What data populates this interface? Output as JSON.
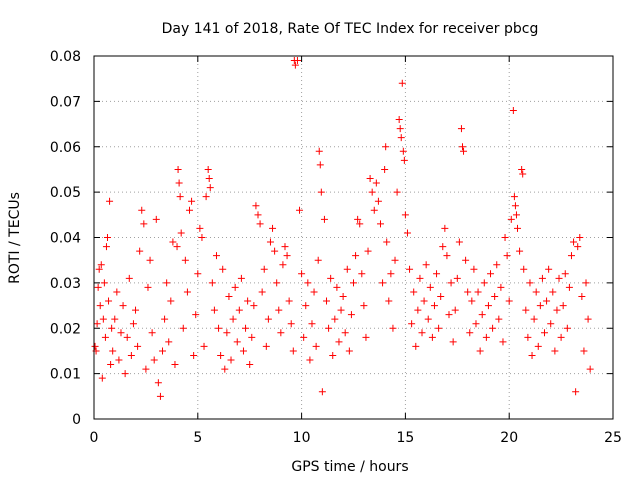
{
  "chart_data": {
    "type": "scatter",
    "title": "Day 141 of 2018, Rate Of TEC Index for receiver pbcg",
    "xlabel": "GPS time / hours",
    "ylabel": "ROTI / TECUs",
    "xlim": [
      0,
      25
    ],
    "ylim": [
      0,
      0.08
    ],
    "x_ticks": [
      0,
      5,
      10,
      15,
      20,
      25
    ],
    "x_tick_labels": [
      "0",
      "5",
      "10",
      "15",
      "20",
      "25"
    ],
    "y_ticks": [
      0,
      0.01,
      0.02,
      0.03,
      0.04,
      0.05,
      0.06,
      0.07,
      0.08
    ],
    "y_tick_labels": [
      "0",
      "0.01",
      "0.02",
      "0.03",
      "0.04",
      "0.05",
      "0.06",
      "0.07",
      "0.08"
    ],
    "grid": true,
    "marker": "+",
    "marker_color": "#ff0000",
    "series": [
      {
        "name": "ROTI",
        "points": [
          [
            0.05,
            0.016
          ],
          [
            0.1,
            0.015
          ],
          [
            0.15,
            0.021
          ],
          [
            0.2,
            0.029
          ],
          [
            0.25,
            0.033
          ],
          [
            0.3,
            0.025
          ],
          [
            0.35,
            0.034
          ],
          [
            0.4,
            0.009
          ],
          [
            0.45,
            0.022
          ],
          [
            0.5,
            0.03
          ],
          [
            0.55,
            0.018
          ],
          [
            0.6,
            0.038
          ],
          [
            0.65,
            0.04
          ],
          [
            0.7,
            0.026
          ],
          [
            0.75,
            0.048
          ],
          [
            0.8,
            0.012
          ],
          [
            0.85,
            0.02
          ],
          [
            0.9,
            0.015
          ],
          [
            1.0,
            0.022
          ],
          [
            1.1,
            0.028
          ],
          [
            1.2,
            0.013
          ],
          [
            1.3,
            0.019
          ],
          [
            1.4,
            0.025
          ],
          [
            1.5,
            0.01
          ],
          [
            1.6,
            0.018
          ],
          [
            1.7,
            0.031
          ],
          [
            1.8,
            0.014
          ],
          [
            1.9,
            0.021
          ],
          [
            2.0,
            0.024
          ],
          [
            2.1,
            0.016
          ],
          [
            2.2,
            0.037
          ],
          [
            2.3,
            0.046
          ],
          [
            2.4,
            0.043
          ],
          [
            2.5,
            0.011
          ],
          [
            2.6,
            0.029
          ],
          [
            2.7,
            0.035
          ],
          [
            2.8,
            0.019
          ],
          [
            2.9,
            0.013
          ],
          [
            3.0,
            0.044
          ],
          [
            3.1,
            0.008
          ],
          [
            3.2,
            0.005
          ],
          [
            3.3,
            0.015
          ],
          [
            3.4,
            0.022
          ],
          [
            3.5,
            0.03
          ],
          [
            3.6,
            0.017
          ],
          [
            3.7,
            0.026
          ],
          [
            3.8,
            0.039
          ],
          [
            3.9,
            0.012
          ],
          [
            4.0,
            0.038
          ],
          [
            4.05,
            0.055
          ],
          [
            4.1,
            0.052
          ],
          [
            4.15,
            0.049
          ],
          [
            4.2,
            0.041
          ],
          [
            4.3,
            0.02
          ],
          [
            4.4,
            0.035
          ],
          [
            4.5,
            0.028
          ],
          [
            4.6,
            0.046
          ],
          [
            4.7,
            0.048
          ],
          [
            4.8,
            0.014
          ],
          [
            4.9,
            0.023
          ],
          [
            5.0,
            0.032
          ],
          [
            5.1,
            0.042
          ],
          [
            5.2,
            0.04
          ],
          [
            5.3,
            0.016
          ],
          [
            5.4,
            0.049
          ],
          [
            5.5,
            0.055
          ],
          [
            5.55,
            0.053
          ],
          [
            5.6,
            0.051
          ],
          [
            5.7,
            0.03
          ],
          [
            5.8,
            0.024
          ],
          [
            5.9,
            0.036
          ],
          [
            6.0,
            0.02
          ],
          [
            6.1,
            0.014
          ],
          [
            6.2,
            0.033
          ],
          [
            6.3,
            0.011
          ],
          [
            6.4,
            0.019
          ],
          [
            6.5,
            0.027
          ],
          [
            6.6,
            0.013
          ],
          [
            6.7,
            0.022
          ],
          [
            6.8,
            0.029
          ],
          [
            6.9,
            0.017
          ],
          [
            7.0,
            0.024
          ],
          [
            7.1,
            0.031
          ],
          [
            7.2,
            0.015
          ],
          [
            7.3,
            0.02
          ],
          [
            7.4,
            0.026
          ],
          [
            7.5,
            0.012
          ],
          [
            7.6,
            0.018
          ],
          [
            7.7,
            0.025
          ],
          [
            7.8,
            0.047
          ],
          [
            7.9,
            0.045
          ],
          [
            8.0,
            0.043
          ],
          [
            8.1,
            0.028
          ],
          [
            8.2,
            0.033
          ],
          [
            8.3,
            0.016
          ],
          [
            8.4,
            0.022
          ],
          [
            8.5,
            0.039
          ],
          [
            8.6,
            0.042
          ],
          [
            8.7,
            0.037
          ],
          [
            8.8,
            0.03
          ],
          [
            8.9,
            0.024
          ],
          [
            9.0,
            0.019
          ],
          [
            9.1,
            0.034
          ],
          [
            9.2,
            0.038
          ],
          [
            9.3,
            0.036
          ],
          [
            9.4,
            0.026
          ],
          [
            9.5,
            0.021
          ],
          [
            9.6,
            0.015
          ],
          [
            9.65,
            0.079
          ],
          [
            9.7,
            0.078
          ],
          [
            9.8,
            0.079
          ],
          [
            9.9,
            0.046
          ],
          [
            10.0,
            0.032
          ],
          [
            10.1,
            0.018
          ],
          [
            10.2,
            0.025
          ],
          [
            10.3,
            0.03
          ],
          [
            10.4,
            0.013
          ],
          [
            10.5,
            0.021
          ],
          [
            10.6,
            0.028
          ],
          [
            10.7,
            0.016
          ],
          [
            10.8,
            0.035
          ],
          [
            10.85,
            0.059
          ],
          [
            10.9,
            0.056
          ],
          [
            10.95,
            0.05
          ],
          [
            11.0,
            0.006
          ],
          [
            11.1,
            0.044
          ],
          [
            11.2,
            0.026
          ],
          [
            11.3,
            0.02
          ],
          [
            11.4,
            0.031
          ],
          [
            11.5,
            0.014
          ],
          [
            11.6,
            0.022
          ],
          [
            11.7,
            0.029
          ],
          [
            11.8,
            0.017
          ],
          [
            11.9,
            0.024
          ],
          [
            12.0,
            0.027
          ],
          [
            12.1,
            0.019
          ],
          [
            12.2,
            0.033
          ],
          [
            12.3,
            0.015
          ],
          [
            12.4,
            0.023
          ],
          [
            12.5,
            0.03
          ],
          [
            12.6,
            0.036
          ],
          [
            12.7,
            0.044
          ],
          [
            12.8,
            0.043
          ],
          [
            12.9,
            0.032
          ],
          [
            13.0,
            0.025
          ],
          [
            13.1,
            0.018
          ],
          [
            13.2,
            0.037
          ],
          [
            13.3,
            0.053
          ],
          [
            13.4,
            0.05
          ],
          [
            13.5,
            0.046
          ],
          [
            13.6,
            0.052
          ],
          [
            13.7,
            0.048
          ],
          [
            13.8,
            0.043
          ],
          [
            13.9,
            0.03
          ],
          [
            14.0,
            0.055
          ],
          [
            14.05,
            0.06
          ],
          [
            14.1,
            0.039
          ],
          [
            14.2,
            0.026
          ],
          [
            14.3,
            0.032
          ],
          [
            14.4,
            0.02
          ],
          [
            14.5,
            0.035
          ],
          [
            14.6,
            0.05
          ],
          [
            14.7,
            0.066
          ],
          [
            14.75,
            0.064
          ],
          [
            14.8,
            0.062
          ],
          [
            14.85,
            0.074
          ],
          [
            14.9,
            0.059
          ],
          [
            14.95,
            0.057
          ],
          [
            15.0,
            0.045
          ],
          [
            15.1,
            0.041
          ],
          [
            15.2,
            0.033
          ],
          [
            15.3,
            0.021
          ],
          [
            15.4,
            0.028
          ],
          [
            15.5,
            0.016
          ],
          [
            15.6,
            0.024
          ],
          [
            15.7,
            0.031
          ],
          [
            15.8,
            0.019
          ],
          [
            15.9,
            0.026
          ],
          [
            16.0,
            0.034
          ],
          [
            16.1,
            0.022
          ],
          [
            16.2,
            0.029
          ],
          [
            16.3,
            0.018
          ],
          [
            16.4,
            0.025
          ],
          [
            16.5,
            0.032
          ],
          [
            16.6,
            0.02
          ],
          [
            16.7,
            0.027
          ],
          [
            16.8,
            0.038
          ],
          [
            16.9,
            0.042
          ],
          [
            17.0,
            0.036
          ],
          [
            17.1,
            0.023
          ],
          [
            17.2,
            0.03
          ],
          [
            17.3,
            0.017
          ],
          [
            17.4,
            0.024
          ],
          [
            17.5,
            0.031
          ],
          [
            17.6,
            0.039
          ],
          [
            17.7,
            0.064
          ],
          [
            17.75,
            0.06
          ],
          [
            17.8,
            0.059
          ],
          [
            17.9,
            0.035
          ],
          [
            18.0,
            0.028
          ],
          [
            18.1,
            0.019
          ],
          [
            18.2,
            0.026
          ],
          [
            18.3,
            0.033
          ],
          [
            18.4,
            0.021
          ],
          [
            18.5,
            0.028
          ],
          [
            18.6,
            0.015
          ],
          [
            18.7,
            0.023
          ],
          [
            18.8,
            0.03
          ],
          [
            18.9,
            0.018
          ],
          [
            19.0,
            0.025
          ],
          [
            19.1,
            0.032
          ],
          [
            19.2,
            0.02
          ],
          [
            19.3,
            0.027
          ],
          [
            19.4,
            0.034
          ],
          [
            19.5,
            0.022
          ],
          [
            19.6,
            0.029
          ],
          [
            19.7,
            0.017
          ],
          [
            19.8,
            0.04
          ],
          [
            19.9,
            0.036
          ],
          [
            20.0,
            0.026
          ],
          [
            20.1,
            0.044
          ],
          [
            20.2,
            0.068
          ],
          [
            20.25,
            0.049
          ],
          [
            20.3,
            0.047
          ],
          [
            20.35,
            0.045
          ],
          [
            20.4,
            0.042
          ],
          [
            20.5,
            0.037
          ],
          [
            20.6,
            0.055
          ],
          [
            20.65,
            0.054
          ],
          [
            20.7,
            0.033
          ],
          [
            20.8,
            0.024
          ],
          [
            20.9,
            0.018
          ],
          [
            21.0,
            0.03
          ],
          [
            21.1,
            0.014
          ],
          [
            21.2,
            0.022
          ],
          [
            21.3,
            0.028
          ],
          [
            21.4,
            0.016
          ],
          [
            21.5,
            0.025
          ],
          [
            21.6,
            0.031
          ],
          [
            21.7,
            0.019
          ],
          [
            21.8,
            0.026
          ],
          [
            21.9,
            0.033
          ],
          [
            22.0,
            0.021
          ],
          [
            22.1,
            0.028
          ],
          [
            22.2,
            0.015
          ],
          [
            22.3,
            0.024
          ],
          [
            22.4,
            0.031
          ],
          [
            22.5,
            0.018
          ],
          [
            22.6,
            0.025
          ],
          [
            22.7,
            0.032
          ],
          [
            22.8,
            0.02
          ],
          [
            22.9,
            0.029
          ],
          [
            23.0,
            0.036
          ],
          [
            23.1,
            0.039
          ],
          [
            23.2,
            0.006
          ],
          [
            23.3,
            0.038
          ],
          [
            23.4,
            0.04
          ],
          [
            23.5,
            0.027
          ],
          [
            23.6,
            0.015
          ],
          [
            23.7,
            0.03
          ],
          [
            23.8,
            0.022
          ],
          [
            23.9,
            0.011
          ]
        ]
      }
    ]
  }
}
